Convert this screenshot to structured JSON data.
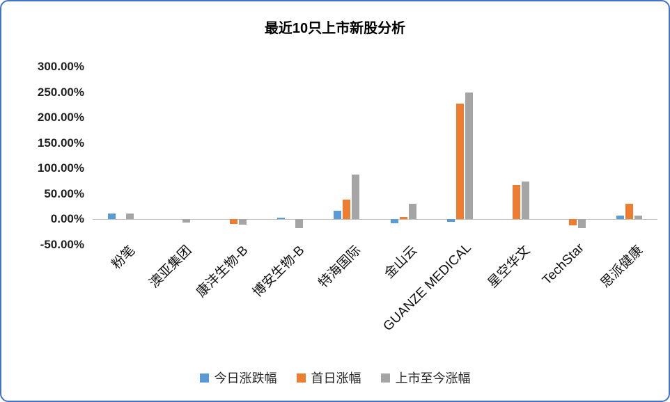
{
  "page": {
    "accent_border_color": "#4472C4"
  },
  "chart_data": {
    "type": "bar",
    "title": "最近10只上市新股分析",
    "categories": [
      "粉笔",
      "澳亚集团",
      "康沣生物-B",
      "博安生物-B",
      "特海国际",
      "金山云",
      "GUANZE MEDICAL",
      "星空华文",
      "TechStar",
      "思派健康"
    ],
    "series": [
      {
        "name": "今日涨跌幅",
        "color": "#5B9BD5",
        "values": [
          12,
          0,
          0,
          3,
          17,
          -8,
          -5,
          0,
          0,
          8
        ]
      },
      {
        "name": "首日涨幅",
        "color": "#ED7D31",
        "values": [
          0,
          0,
          -9,
          0,
          39,
          5,
          228,
          68,
          -12,
          30
        ]
      },
      {
        "name": "上市至今涨幅",
        "color": "#A5A5A5",
        "values": [
          11,
          -6,
          -11,
          -17,
          88,
          30,
          250,
          74,
          -17,
          8
        ]
      }
    ],
    "ylim": [
      -50,
      300
    ],
    "yticks": [
      300,
      250,
      200,
      150,
      100,
      50,
      0,
      -50
    ],
    "ytick_labels": [
      "300.00%",
      "250.00%",
      "200.00%",
      "150.00%",
      "100.00%",
      "50.00%",
      "0.00%",
      "-50.00%"
    ],
    "grid": false,
    "legend_position": "bottom",
    "axis_line_color": "#BFBFBF"
  }
}
